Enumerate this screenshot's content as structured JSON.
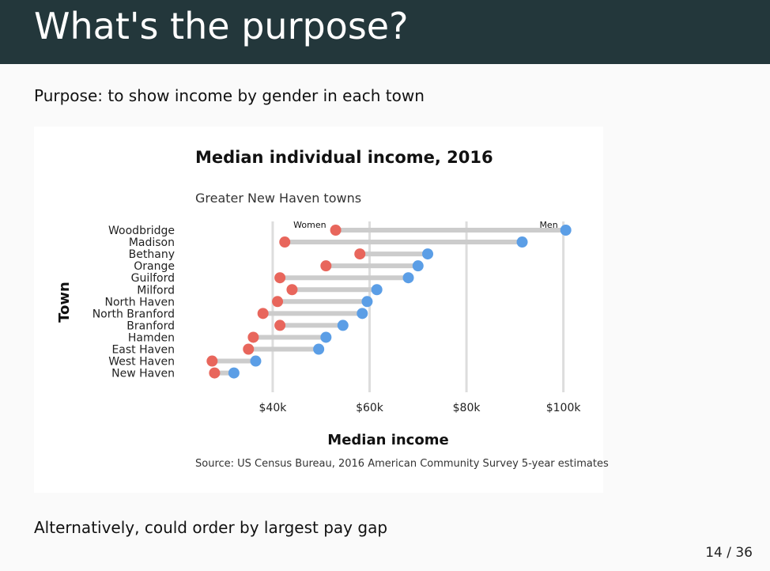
{
  "slide": {
    "title": "What's the purpose?",
    "purpose_text": "Purpose: to show income by gender in each town",
    "alt_text": "Alternatively, could order by largest pay gap",
    "page_number": "14 / 36"
  },
  "chart_data": {
    "type": "dumbbell",
    "title": "Median individual income, 2016",
    "subtitle": "Greater New Haven towns",
    "xlabel": "Median income",
    "ylabel": "Town",
    "caption": "Source: US Census Bureau, 2016 American Community Survey 5-year estimates",
    "xlim": [
      25,
      103
    ],
    "x_ticks": [
      40,
      60,
      80,
      100
    ],
    "x_tick_labels": [
      "$40k",
      "$60k",
      "$80k",
      "$100k"
    ],
    "grid": "vertical",
    "colors": {
      "women": "#e8665c",
      "men": "#5b9ee6",
      "segment": "#cccccc",
      "grid": "#dddddd"
    },
    "series_labels": {
      "women": "Women",
      "men": "Men"
    },
    "categories": [
      "Woodbridge",
      "Madison",
      "Bethany",
      "Orange",
      "Guilford",
      "Milford",
      "North Haven",
      "North Branford",
      "Branford",
      "Hamden",
      "East Haven",
      "West Haven",
      "New Haven"
    ],
    "series": [
      {
        "name": "Women",
        "values": [
          53,
          42.5,
          58,
          51,
          41.5,
          44,
          41,
          38,
          41.5,
          36,
          35,
          27.5,
          28
        ]
      },
      {
        "name": "Men",
        "values": [
          100.5,
          91.5,
          72,
          70,
          68,
          61.5,
          59.5,
          58.5,
          54.5,
          51,
          49.5,
          36.5,
          32
        ]
      }
    ]
  }
}
